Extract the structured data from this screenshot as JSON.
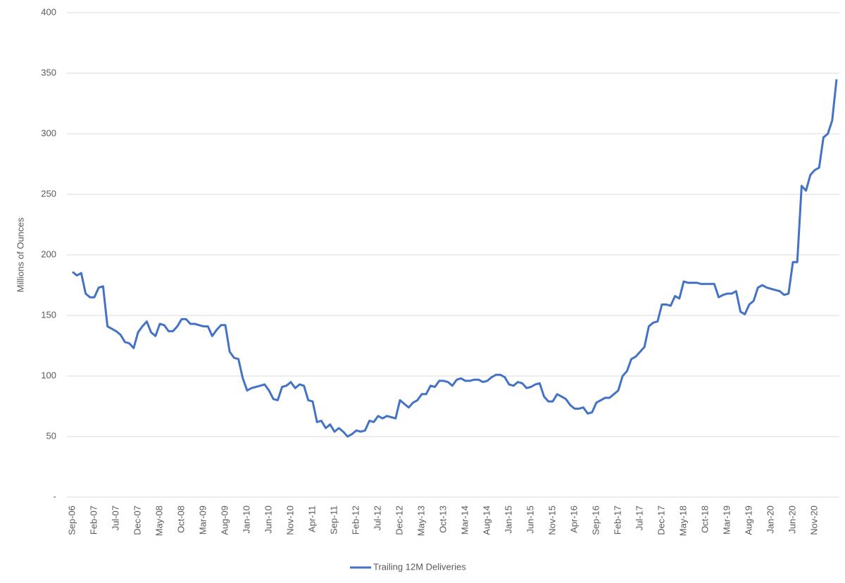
{
  "chart_data": {
    "type": "line",
    "y_label": "Millions of Ounces",
    "categories": [
      "Sep-06",
      null,
      null,
      null,
      null,
      "Feb-07",
      null,
      null,
      null,
      null,
      "Jul-07",
      null,
      null,
      null,
      null,
      "Dec-07",
      null,
      null,
      null,
      null,
      "May-08",
      null,
      null,
      null,
      null,
      "Oct-08",
      null,
      null,
      null,
      null,
      "Mar-09",
      null,
      null,
      null,
      null,
      "Aug-09",
      null,
      null,
      null,
      null,
      "Jan-10",
      null,
      null,
      null,
      null,
      "Jun-10",
      null,
      null,
      null,
      null,
      "Nov-10",
      null,
      null,
      null,
      null,
      "Apr-11",
      null,
      null,
      null,
      null,
      "Sep-11",
      null,
      null,
      null,
      null,
      "Feb-12",
      null,
      null,
      null,
      null,
      "Jul-12",
      null,
      null,
      null,
      null,
      "Dec-12",
      null,
      null,
      null,
      null,
      "May-13",
      null,
      null,
      null,
      null,
      "Oct-13",
      null,
      null,
      null,
      null,
      "Mar-14",
      null,
      null,
      null,
      null,
      "Aug-14",
      null,
      null,
      null,
      null,
      "Jan-15",
      null,
      null,
      null,
      null,
      "Jun-15",
      null,
      null,
      null,
      null,
      "Nov-15",
      null,
      null,
      null,
      null,
      "Apr-16",
      null,
      null,
      null,
      null,
      "Sep-16",
      null,
      null,
      null,
      null,
      "Feb-17",
      null,
      null,
      null,
      null,
      "Jul-17",
      null,
      null,
      null,
      null,
      "Dec-17",
      null,
      null,
      null,
      null,
      "May-18",
      null,
      null,
      null,
      null,
      "Oct-18",
      null,
      null,
      null,
      null,
      "Mar-19",
      null,
      null,
      null,
      null,
      "Aug-19",
      null,
      null,
      null,
      null,
      "Jan-20",
      null,
      null,
      null,
      null,
      "Jun-20",
      null,
      null,
      null,
      null,
      "Nov-20",
      null,
      null,
      null,
      null,
      null
    ],
    "series": [
      {
        "name": "Trailing 12M Deliveries",
        "color": "#4472c4",
        "values": [
          186,
          183,
          185,
          168,
          165,
          165,
          173,
          174,
          141,
          139,
          137,
          134,
          128,
          127,
          123,
          136,
          141,
          145,
          136,
          133,
          143,
          142,
          137,
          137,
          141,
          147,
          147,
          143,
          143,
          142,
          141,
          141,
          133,
          138,
          142,
          142,
          120,
          115,
          114,
          98,
          88,
          90,
          91,
          92,
          93,
          88,
          81,
          80,
          91,
          92,
          95,
          90,
          93,
          92,
          80,
          79,
          62,
          63,
          57,
          60,
          54,
          57,
          54,
          50,
          52,
          55,
          54,
          55,
          63,
          62,
          67,
          65,
          67,
          66,
          65,
          80,
          77,
          74,
          78,
          80,
          85,
          85,
          92,
          91,
          96,
          96,
          95,
          92,
          97,
          98,
          96,
          96,
          97,
          97,
          95,
          96,
          99,
          101,
          101,
          99,
          93,
          92,
          95,
          94,
          90,
          91,
          93,
          94,
          83,
          79,
          79,
          85,
          83,
          81,
          76,
          73,
          73,
          74,
          69,
          70,
          78,
          80,
          82,
          82,
          85,
          88,
          100,
          104,
          114,
          116,
          120,
          124,
          141,
          144,
          145,
          159,
          159,
          158,
          166,
          164,
          178,
          177,
          177,
          177,
          176,
          176,
          176,
          176,
          165,
          167,
          168,
          168,
          170,
          153,
          151,
          159,
          162,
          173,
          175,
          173,
          172,
          171,
          170,
          167,
          168,
          194,
          194,
          257,
          253,
          266,
          270,
          272,
          297,
          300,
          311,
          345
        ]
      }
    ],
    "ylim": [
      0,
      400
    ],
    "yticks": [
      {
        "value": 0,
        "label": "-"
      },
      50,
      100,
      150,
      200,
      250,
      300,
      350,
      400
    ],
    "grid": true,
    "legend": "bottom"
  }
}
